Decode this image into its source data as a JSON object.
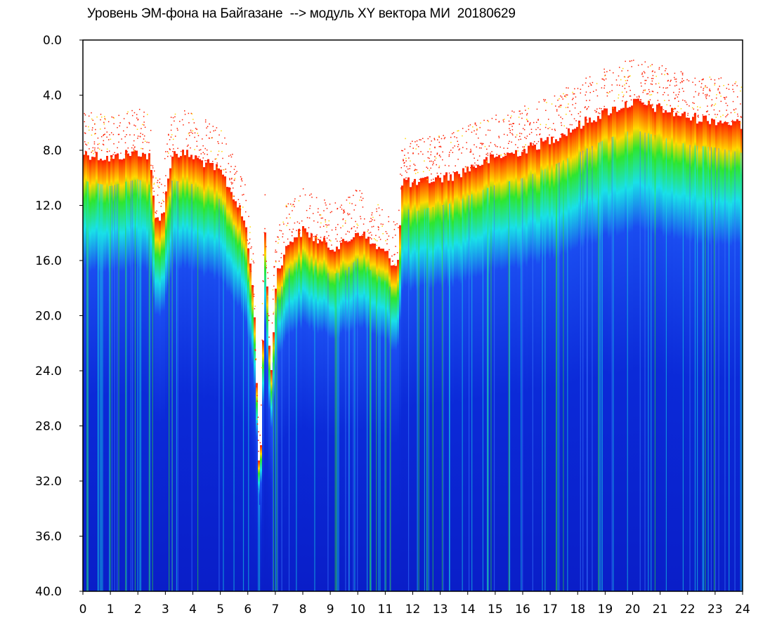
{
  "chart_data": {
    "type": "heatmap",
    "title": "Уровень ЭМ-фона на Байгазане  --> модуль XY вектора МИ  20180629",
    "xlabel": "",
    "ylabel": "",
    "xlim": [
      0,
      24
    ],
    "ylim": [
      0.0,
      40.0
    ],
    "y_inverted": true,
    "x_ticks": [
      "0",
      "1",
      "2",
      "3",
      "4",
      "5",
      "6",
      "7",
      "8",
      "9",
      "10",
      "11",
      "12",
      "13",
      "14",
      "15",
      "16",
      "17",
      "18",
      "19",
      "20",
      "21",
      "22",
      "23",
      "24"
    ],
    "y_ticks": [
      "0.0",
      "4.0",
      "8.0",
      "12.0",
      "16.0",
      "20.0",
      "24.0",
      "28.0",
      "32.0",
      "36.0",
      "40.0"
    ],
    "grid": false,
    "colormap": [
      "#ff1e00",
      "#ffd800",
      "#2ee62e",
      "#19e0e8",
      "#1a4cf0",
      "#0a1ec8"
    ],
    "upper_edge": [
      {
        "x": 0.0,
        "y": 8.2
      },
      {
        "x": 0.5,
        "y": 8.4
      },
      {
        "x": 1.0,
        "y": 8.6
      },
      {
        "x": 1.5,
        "y": 8.3
      },
      {
        "x": 2.0,
        "y": 8.1
      },
      {
        "x": 2.4,
        "y": 8.5
      },
      {
        "x": 2.6,
        "y": 13.0
      },
      {
        "x": 2.9,
        "y": 12.5
      },
      {
        "x": 3.2,
        "y": 8.2
      },
      {
        "x": 3.8,
        "y": 8.3
      },
      {
        "x": 4.5,
        "y": 9.0
      },
      {
        "x": 5.0,
        "y": 9.6
      },
      {
        "x": 5.5,
        "y": 11.5
      },
      {
        "x": 5.9,
        "y": 13.5
      },
      {
        "x": 6.2,
        "y": 19.0
      },
      {
        "x": 6.4,
        "y": 33.0
      },
      {
        "x": 6.6,
        "y": 13.8
      },
      {
        "x": 6.8,
        "y": 25.0
      },
      {
        "x": 7.0,
        "y": 17.0
      },
      {
        "x": 7.5,
        "y": 14.5
      },
      {
        "x": 8.0,
        "y": 13.8
      },
      {
        "x": 8.5,
        "y": 14.5
      },
      {
        "x": 9.0,
        "y": 15.0
      },
      {
        "x": 9.5,
        "y": 14.8
      },
      {
        "x": 10.0,
        "y": 13.8
      },
      {
        "x": 10.5,
        "y": 14.8
      },
      {
        "x": 11.0,
        "y": 15.5
      },
      {
        "x": 11.4,
        "y": 16.5
      },
      {
        "x": 11.6,
        "y": 10.0
      },
      {
        "x": 12.0,
        "y": 10.5
      },
      {
        "x": 12.5,
        "y": 10.2
      },
      {
        "x": 13.0,
        "y": 10.0
      },
      {
        "x": 13.5,
        "y": 9.8
      },
      {
        "x": 14.0,
        "y": 9.3
      },
      {
        "x": 14.5,
        "y": 8.9
      },
      {
        "x": 15.0,
        "y": 8.5
      },
      {
        "x": 16.0,
        "y": 8.0
      },
      {
        "x": 17.0,
        "y": 7.2
      },
      {
        "x": 18.0,
        "y": 6.2
      },
      {
        "x": 19.0,
        "y": 5.2
      },
      {
        "x": 20.0,
        "y": 4.5
      },
      {
        "x": 21.0,
        "y": 5.0
      },
      {
        "x": 22.0,
        "y": 5.6
      },
      {
        "x": 23.0,
        "y": 5.8
      },
      {
        "x": 24.0,
        "y": 6.2
      }
    ]
  }
}
